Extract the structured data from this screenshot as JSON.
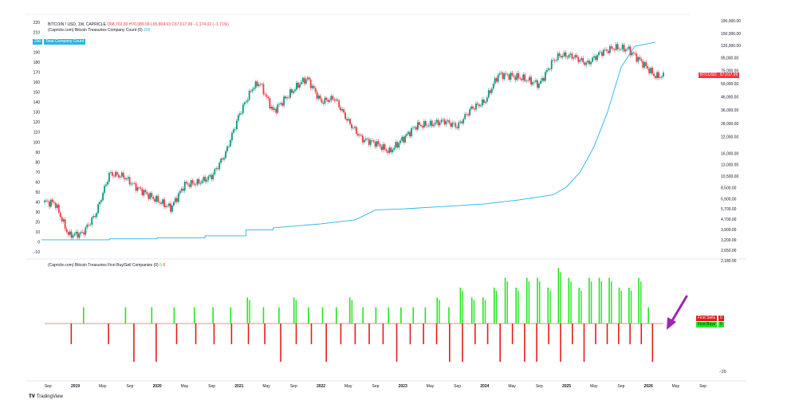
{
  "header": {
    "symbol_line": "BITCOIN / USD, 1W, CAPRICLE",
    "ohlc": {
      "o": "O68,702.00",
      "h": "H70,089.09",
      "l": "L65,804.63",
      "c": "C67,617.99",
      "chg": "−1,174.02 (−1.71%)"
    },
    "indicator1": "(Capricle.com) Bitcoin Treasuries Company Count (0)",
    "indicator1_value": "200",
    "legend_badge_value": "200",
    "legend_badge_label": "Total Company Count",
    "indicator2": "(Capricle.com) Bitcoin Treasuries First Buy/Sell Companies (0)",
    "indicator2_values": [
      "0",
      "0"
    ]
  },
  "price_badge": {
    "label": "BTCUSD",
    "value": "67,617.99"
  },
  "first_sells_badge": {
    "label": "First Sells",
    "value": "0"
  },
  "first_buys_badge": {
    "label": "First Buys",
    "value": "0"
  },
  "lower_axis_label": "−20",
  "brand": "TradingView",
  "colors": {
    "up": "#089981",
    "down": "#f23645",
    "count_line": "#26b5e6",
    "buy_bar": "#22e61e",
    "sell_bar": "#e01e1e",
    "arrow": "#9c27b0"
  },
  "chart_data": [
    {
      "type": "line",
      "title": "BITCOIN / USD, 1W, CAPRICLE",
      "log_scale_right": true,
      "right_axis_ticks": [
        "190,000.00",
        "150,000.00",
        "120,000.00",
        "95,000.00",
        "75,000.00",
        "59,000.00",
        "46,000.00",
        "36,000.00",
        "28,000.00",
        "22,000.00",
        "16,000.00",
        "13,000.00",
        "10,500.00",
        "8,500.00",
        "6,900.00",
        "5,700.00",
        "4,700.00",
        "3,900.00",
        "3,200.00",
        "2,650.00",
        "2,180.00"
      ],
      "left_axis_ticks": [
        "220",
        "210",
        "200",
        "190",
        "180",
        "170",
        "160",
        "150",
        "140",
        "130",
        "120",
        "110",
        "100",
        "90",
        "80",
        "70",
        "60",
        "50",
        "40",
        "30",
        "20",
        "10",
        "0",
        "−10"
      ],
      "x_ticks": [
        "Sep",
        "2019",
        "May",
        "Sep",
        "2020",
        "May",
        "Sep",
        "2021",
        "May",
        "Sep",
        "2022",
        "May",
        "Sep",
        "2023",
        "May",
        "Sep",
        "2024",
        "May",
        "Sep",
        "2025",
        "May",
        "Sep",
        "2026",
        "May",
        "Sep"
      ],
      "series": [
        {
          "name": "Bitcoin / USD",
          "x": [
            "2018-08",
            "2018-10",
            "2018-12",
            "2019-02",
            "2019-04",
            "2019-06",
            "2019-08",
            "2019-10",
            "2019-12",
            "2020-03",
            "2020-05",
            "2020-07",
            "2020-09",
            "2020-11",
            "2021-01",
            "2021-03",
            "2021-04",
            "2021-06",
            "2021-08",
            "2021-10",
            "2021-11",
            "2022-01",
            "2022-03",
            "2022-05",
            "2022-07",
            "2022-09",
            "2022-11",
            "2023-01",
            "2023-03",
            "2023-05",
            "2023-07",
            "2023-09",
            "2023-11",
            "2024-01",
            "2024-03",
            "2024-05",
            "2024-07",
            "2024-09",
            "2024-11",
            "2024-12",
            "2025-02",
            "2025-04",
            "2025-06",
            "2025-08",
            "2025-10",
            "2025-12",
            "2026-02"
          ],
          "values": [
            6500,
            6400,
            3500,
            3600,
            5200,
            11000,
            10500,
            8500,
            7200,
            5800,
            9000,
            9300,
            10500,
            16000,
            33000,
            55000,
            60000,
            35000,
            46000,
            60000,
            65000,
            42000,
            45000,
            29000,
            21000,
            19500,
            16500,
            21000,
            27000,
            27500,
            29500,
            26500,
            37000,
            42000,
            70000,
            68000,
            64000,
            58000,
            90000,
            100000,
            98000,
            85000,
            105000,
            115000,
            112000,
            88000,
            67618
          ]
        },
        {
          "name": "Total Company Count",
          "x": [
            "2018-08",
            "2019-06",
            "2020-01",
            "2020-08",
            "2021-02",
            "2021-06",
            "2022-01",
            "2022-06",
            "2022-09",
            "2023-01",
            "2023-06",
            "2024-01",
            "2024-06",
            "2024-11",
            "2025-01",
            "2025-03",
            "2025-05",
            "2025-07",
            "2025-09",
            "2025-11",
            "2026-02"
          ],
          "values": [
            2,
            3,
            4,
            6,
            12,
            14,
            18,
            22,
            32,
            33,
            35,
            38,
            42,
            47,
            55,
            70,
            95,
            130,
            175,
            196,
            200
          ]
        }
      ]
    },
    {
      "type": "bar",
      "title": "(Capricle.com) Bitcoin Treasuries First Buy/Sell Companies (0)",
      "series": [
        {
          "name": "First Buys",
          "values": [
            1,
            1,
            1,
            1,
            1,
            1,
            1,
            2,
            1,
            1,
            2,
            1,
            1,
            1,
            2,
            1,
            1,
            1,
            1,
            1,
            1,
            2,
            1,
            3,
            2,
            2,
            3,
            4,
            3,
            4,
            4,
            3,
            5,
            4,
            3,
            4,
            4,
            4,
            3,
            3,
            4,
            1
          ]
        },
        {
          "name": "First Sells",
          "values": [
            -1,
            -1,
            -2,
            -2,
            -1,
            -1,
            -1,
            -1,
            -1,
            -1,
            -2,
            -1,
            -1,
            -2,
            -1,
            -1,
            -1,
            -1,
            -2,
            -1,
            -1,
            -1,
            -2,
            -2,
            -1,
            -1,
            -2,
            -1,
            -2,
            -2,
            -1,
            -2,
            -1,
            -2,
            -1,
            -1,
            -1,
            -1,
            -1,
            -2
          ]
        }
      ]
    }
  ]
}
